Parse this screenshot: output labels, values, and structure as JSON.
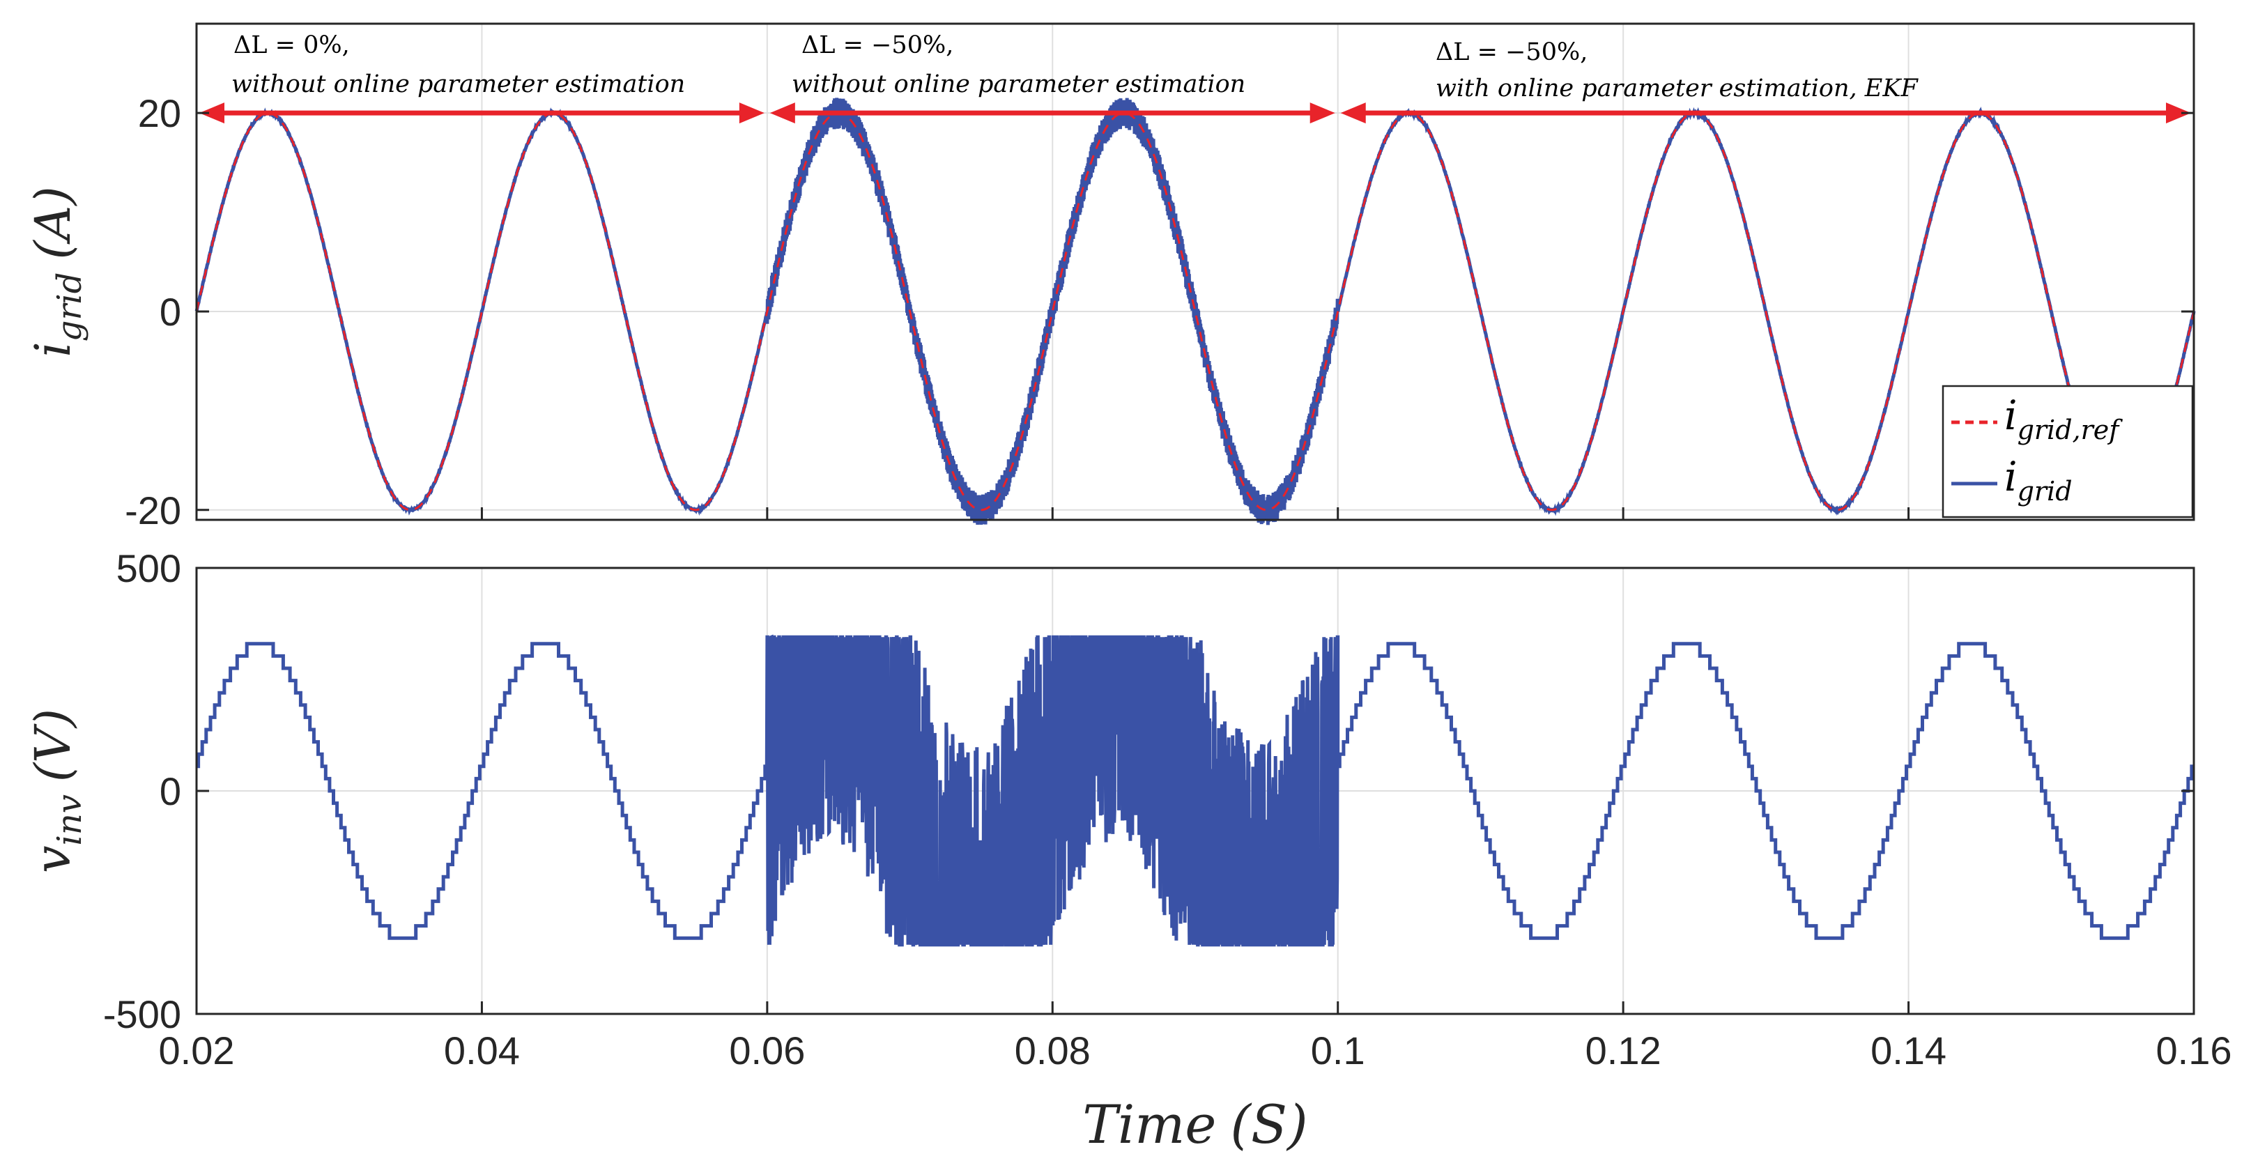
{
  "chart_data": [
    {
      "type": "line",
      "title": "",
      "ylabel_main": "i",
      "ylabel_sub": "grid",
      "ylabel_unit": "(A)",
      "xlim": [
        0.02,
        0.16
      ],
      "ylim": [
        -21,
        29
      ],
      "yticks": [
        -20,
        0,
        20
      ],
      "ytick_labels": [
        "-20",
        "0",
        "20"
      ],
      "xticks": [
        0.02,
        0.04,
        0.06,
        0.08,
        0.1,
        0.12,
        0.14,
        0.16
      ],
      "grid": true,
      "frequency_hz": 50,
      "series": [
        {
          "name": "i_grid,ref",
          "legend_main": "i",
          "legend_sub": "grid,ref",
          "style": "dashed",
          "color": "#e8232a",
          "amplitude": 20,
          "phase_deg": 0
        },
        {
          "name": "i_grid",
          "legend_main": "i",
          "legend_sub": "grid",
          "style": "solid",
          "color": "#3a52a6",
          "amplitude": 20,
          "phase_deg": 0,
          "ripple_segments": [
            {
              "from": 0.02,
              "to": 0.06,
              "ripple": 0.15
            },
            {
              "from": 0.06,
              "to": 0.1,
              "ripple": 1.6
            },
            {
              "from": 0.1,
              "to": 0.16,
              "ripple": 0.15
            }
          ]
        }
      ],
      "legend_position": "bottom-right",
      "annotations": [
        {
          "from": 0.02,
          "to": 0.06,
          "line1": "ΔL = 0%,",
          "line2": "without online parameter estimation"
        },
        {
          "from": 0.06,
          "to": 0.1,
          "line1": "ΔL = −50%,",
          "line2": "without online parameter estimation"
        },
        {
          "from": 0.1,
          "to": 0.16,
          "line1": "ΔL = −50%,",
          "line2": "with online parameter estimation, EKF"
        }
      ],
      "arrow_level": 20,
      "arrow_color": "#e8232a"
    },
    {
      "type": "line",
      "ylabel_main": "v",
      "ylabel_sub": "inv",
      "ylabel_unit": "(V)",
      "xlabel_main": "Time",
      "xlabel_unit": "(S)",
      "xlim": [
        0.02,
        0.16
      ],
      "ylim": [
        -500,
        500
      ],
      "yticks": [
        -500,
        0,
        500
      ],
      "ytick_labels": [
        "-500",
        "0",
        "500"
      ],
      "xticks": [
        0.02,
        0.04,
        0.06,
        0.08,
        0.1,
        0.12,
        0.14,
        0.16
      ],
      "xtick_labels": [
        "0.02",
        "0.04",
        "0.06",
        "0.08",
        "0.1",
        "0.12",
        "0.14",
        "0.16"
      ],
      "grid": true,
      "frequency_hz": 50,
      "series": [
        {
          "name": "v_inv",
          "style": "solid",
          "color": "#3a52a6",
          "amplitude": 330,
          "phase_deg": 10,
          "step_levels": 12,
          "saturation": 345,
          "noisy_segment": {
            "from": 0.06,
            "to": 0.1
          }
        }
      ]
    }
  ]
}
